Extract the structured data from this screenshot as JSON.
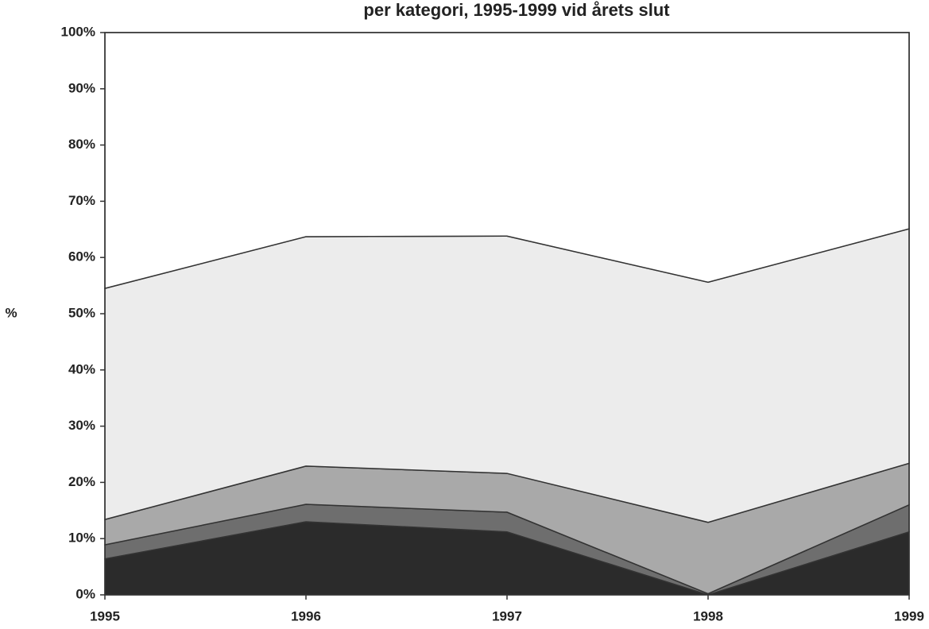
{
  "chart_data": {
    "type": "stacked-area",
    "title": "per kategori, 1995-1999 vid årets slut",
    "y_label": "%",
    "x": [
      1995,
      1996,
      1997,
      1998,
      1999
    ],
    "xlim": [
      1995,
      1999
    ],
    "xticks": [
      1995,
      1996,
      1997,
      1998,
      1999
    ],
    "ylim": [
      0,
      100
    ],
    "yticks": [
      {
        "value": 0,
        "label": "0%"
      },
      {
        "value": 10,
        "label": "10%"
      },
      {
        "value": 20,
        "label": "20%"
      },
      {
        "value": 30,
        "label": "30%"
      },
      {
        "value": 40,
        "label": "40%"
      },
      {
        "value": 50,
        "label": "50%"
      },
      {
        "value": 60,
        "label": "60%"
      },
      {
        "value": 70,
        "label": "70%"
      },
      {
        "value": 80,
        "label": "80%"
      },
      {
        "value": 90,
        "label": "90%"
      },
      {
        "value": 100,
        "label": "100%"
      }
    ],
    "series": [
      {
        "color": "#2b2b2b",
        "values": [
          6.4,
          13,
          11.2,
          0,
          11.2
        ]
      },
      {
        "color": "#6e6e6e",
        "values": [
          2.5,
          3.1,
          3.5,
          0.2,
          4.8
        ]
      },
      {
        "color": "#a9a9a9",
        "values": [
          4.5,
          6.8,
          6.9,
          12.7,
          7.4
        ]
      },
      {
        "color": "#ececec",
        "values": [
          41.1,
          40.8,
          42.2,
          42.7,
          41.7
        ]
      },
      {
        "color": "#ffffff",
        "values": [
          45.5,
          36.3,
          36.2,
          44.4,
          34.9
        ]
      }
    ]
  }
}
